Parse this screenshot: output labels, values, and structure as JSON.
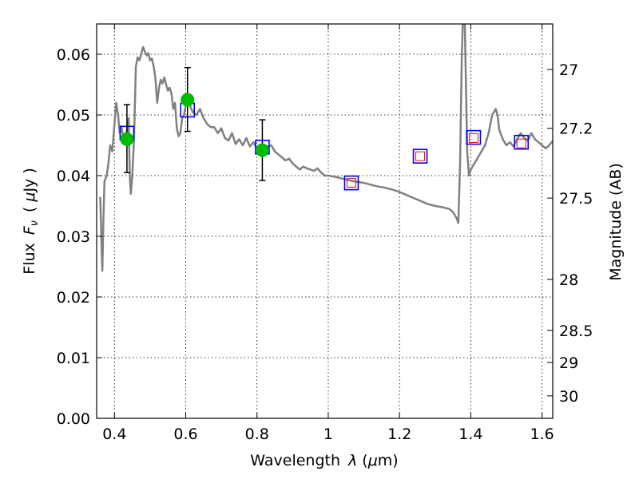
{
  "chart_data": {
    "type": "scatter",
    "xlabel_text": "Wavelength",
    "xlabel_symbol": "λ",
    "xlabel_unit_open": "(",
    "xlabel_unit_mu": "μ",
    "xlabel_unit_close": "m)",
    "ylabel_text": "Flux",
    "ylabel_symbol_base": "F",
    "ylabel_symbol_sub": "ν",
    "ylabel_unit_open": "(",
    "ylabel_unit_mu": "μ",
    "ylabel_unit_close": "Jy )",
    "y2label": "Magnitude (AB)",
    "xlim": [
      0.35,
      1.63
    ],
    "ylim": [
      0.0,
      0.065
    ],
    "grid": true,
    "x_ticks": [
      {
        "value": 0.4,
        "label": "0.4"
      },
      {
        "value": 0.6,
        "label": "0.6"
      },
      {
        "value": 0.8,
        "label": "0.8"
      },
      {
        "value": 1.0,
        "label": "1"
      },
      {
        "value": 1.2,
        "label": "1.2"
      },
      {
        "value": 1.4,
        "label": "1.4"
      },
      {
        "value": 1.6,
        "label": "1.6"
      }
    ],
    "y_ticks": [
      {
        "value": 0.0,
        "label": "0.00"
      },
      {
        "value": 0.01,
        "label": "0.01"
      },
      {
        "value": 0.02,
        "label": "0.02"
      },
      {
        "value": 0.03,
        "label": "0.03"
      },
      {
        "value": 0.04,
        "label": "0.04"
      },
      {
        "value": 0.05,
        "label": "0.05"
      },
      {
        "value": 0.06,
        "label": "0.06"
      }
    ],
    "y2_ticks": [
      {
        "flux": 0.0575,
        "label": "27"
      },
      {
        "flux": 0.0478,
        "label": "27.2"
      },
      {
        "flux": 0.0363,
        "label": "27.5"
      },
      {
        "flux": 0.0229,
        "label": "28"
      },
      {
        "flux": 0.0145,
        "label": "28.5"
      },
      {
        "flux": 0.0092,
        "label": "29"
      },
      {
        "flux": 0.0037,
        "label": "30"
      }
    ],
    "colors": {
      "sed_line": "#808080",
      "model_squares": "#0000ff",
      "upper_squares": "#ff0000",
      "observed_points": "#00bb00",
      "errorbars": "#000000"
    },
    "series": [
      {
        "kind": "line",
        "points": [
          [
            0.36,
            0.0365
          ],
          [
            0.363,
            0.03
          ],
          [
            0.366,
            0.0243
          ],
          [
            0.369,
            0.033
          ],
          [
            0.372,
            0.039
          ],
          [
            0.378,
            0.04
          ],
          [
            0.383,
            0.042
          ],
          [
            0.388,
            0.045
          ],
          [
            0.394,
            0.044
          ],
          [
            0.4,
            0.0485
          ],
          [
            0.405,
            0.052
          ],
          [
            0.41,
            0.05
          ],
          [
            0.415,
            0.047
          ],
          [
            0.42,
            0.048
          ],
          [
            0.425,
            0.046
          ],
          [
            0.43,
            0.0465
          ],
          [
            0.435,
            0.0475
          ],
          [
            0.44,
            0.0495
          ],
          [
            0.443,
            0.04
          ],
          [
            0.446,
            0.037
          ],
          [
            0.45,
            0.04
          ],
          [
            0.455,
            0.046
          ],
          [
            0.46,
            0.058
          ],
          [
            0.465,
            0.0595
          ],
          [
            0.47,
            0.059
          ],
          [
            0.475,
            0.06
          ],
          [
            0.48,
            0.0612
          ],
          [
            0.485,
            0.0605
          ],
          [
            0.49,
            0.0598
          ],
          [
            0.495,
            0.0602
          ],
          [
            0.5,
            0.059
          ],
          [
            0.505,
            0.0593
          ],
          [
            0.51,
            0.058
          ],
          [
            0.515,
            0.056
          ],
          [
            0.52,
            0.052
          ],
          [
            0.525,
            0.0545
          ],
          [
            0.53,
            0.0558
          ],
          [
            0.535,
            0.0552
          ],
          [
            0.54,
            0.0562
          ],
          [
            0.545,
            0.055
          ],
          [
            0.55,
            0.054
          ],
          [
            0.555,
            0.0545
          ],
          [
            0.56,
            0.0535
          ],
          [
            0.565,
            0.051
          ],
          [
            0.57,
            0.052
          ],
          [
            0.575,
            0.0478
          ],
          [
            0.58,
            0.0465
          ],
          [
            0.585,
            0.047
          ],
          [
            0.59,
            0.0495
          ],
          [
            0.595,
            0.05
          ],
          [
            0.6,
            0.0515
          ],
          [
            0.605,
            0.0525
          ],
          [
            0.61,
            0.052
          ],
          [
            0.615,
            0.051
          ],
          [
            0.62,
            0.0505
          ],
          [
            0.63,
            0.05
          ],
          [
            0.64,
            0.051
          ],
          [
            0.65,
            0.0495
          ],
          [
            0.66,
            0.0485
          ],
          [
            0.67,
            0.048
          ],
          [
            0.68,
            0.048
          ],
          [
            0.69,
            0.047
          ],
          [
            0.7,
            0.0478
          ],
          [
            0.71,
            0.0462
          ],
          [
            0.72,
            0.0458
          ],
          [
            0.73,
            0.047
          ],
          [
            0.74,
            0.0452
          ],
          [
            0.75,
            0.046
          ],
          [
            0.76,
            0.045
          ],
          [
            0.77,
            0.0462
          ],
          [
            0.78,
            0.0448
          ],
          [
            0.79,
            0.0455
          ],
          [
            0.8,
            0.0445
          ],
          [
            0.81,
            0.045
          ],
          [
            0.82,
            0.044
          ],
          [
            0.83,
            0.0448
          ],
          [
            0.84,
            0.045
          ],
          [
            0.85,
            0.044
          ],
          [
            0.86,
            0.0435
          ],
          [
            0.87,
            0.043
          ],
          [
            0.88,
            0.0425
          ],
          [
            0.89,
            0.0428
          ],
          [
            0.9,
            0.042
          ],
          [
            0.91,
            0.0415
          ],
          [
            0.92,
            0.041
          ],
          [
            0.93,
            0.0415
          ],
          [
            0.94,
            0.0412
          ],
          [
            0.95,
            0.041
          ],
          [
            0.96,
            0.0408
          ],
          [
            0.97,
            0.0412
          ],
          [
            0.98,
            0.0405
          ],
          [
            0.99,
            0.04
          ],
          [
            1.0,
            0.04
          ],
          [
            1.02,
            0.0398
          ],
          [
            1.04,
            0.0395
          ],
          [
            1.06,
            0.0392
          ],
          [
            1.08,
            0.039
          ],
          [
            1.1,
            0.0388
          ],
          [
            1.12,
            0.0385
          ],
          [
            1.14,
            0.0382
          ],
          [
            1.16,
            0.038
          ],
          [
            1.18,
            0.0377
          ],
          [
            1.2,
            0.0373
          ],
          [
            1.22,
            0.0368
          ],
          [
            1.24,
            0.0363
          ],
          [
            1.26,
            0.0358
          ],
          [
            1.28,
            0.0353
          ],
          [
            1.3,
            0.035
          ],
          [
            1.32,
            0.0348
          ],
          [
            1.34,
            0.0345
          ],
          [
            1.35,
            0.034
          ],
          [
            1.36,
            0.033
          ],
          [
            1.365,
            0.0322
          ],
          [
            1.37,
            0.042
          ],
          [
            1.375,
            0.06
          ],
          [
            1.378,
            0.066
          ],
          [
            1.383,
            0.066
          ],
          [
            1.386,
            0.056
          ],
          [
            1.39,
            0.044
          ],
          [
            1.395,
            0.04
          ],
          [
            1.4,
            0.041
          ],
          [
            1.41,
            0.042
          ],
          [
            1.42,
            0.043
          ],
          [
            1.43,
            0.044
          ],
          [
            1.44,
            0.045
          ],
          [
            1.45,
            0.047
          ],
          [
            1.46,
            0.05
          ],
          [
            1.47,
            0.051
          ],
          [
            1.475,
            0.05
          ],
          [
            1.48,
            0.0475
          ],
          [
            1.49,
            0.046
          ],
          [
            1.5,
            0.045
          ],
          [
            1.51,
            0.0455
          ],
          [
            1.52,
            0.0448
          ],
          [
            1.53,
            0.046
          ],
          [
            1.54,
            0.047
          ],
          [
            1.55,
            0.0462
          ],
          [
            1.56,
            0.0458
          ],
          [
            1.57,
            0.047
          ],
          [
            1.58,
            0.046
          ],
          [
            1.59,
            0.0455
          ],
          [
            1.6,
            0.045
          ],
          [
            1.61,
            0.0445
          ],
          [
            1.62,
            0.045
          ],
          [
            1.63,
            0.0457
          ]
        ]
      },
      {
        "kind": "open-square",
        "points": [
          [
            0.435,
            0.047
          ],
          [
            0.605,
            0.0508
          ],
          [
            0.815,
            0.0447
          ],
          [
            1.065,
            0.0388
          ],
          [
            1.258,
            0.0432
          ],
          [
            1.408,
            0.0463
          ],
          [
            1.542,
            0.0455
          ]
        ]
      },
      {
        "kind": "open-square-small",
        "points": [
          [
            1.065,
            0.0388
          ],
          [
            1.258,
            0.0432
          ],
          [
            1.408,
            0.0462
          ],
          [
            1.542,
            0.0453
          ]
        ]
      },
      {
        "kind": "points-with-errorbars",
        "points": [
          {
            "x": 0.435,
            "y": 0.046,
            "ylo": 0.0405,
            "yhi": 0.0517
          },
          {
            "x": 0.605,
            "y": 0.0525,
            "ylo": 0.0473,
            "yhi": 0.0578
          },
          {
            "x": 0.815,
            "y": 0.0442,
            "ylo": 0.0392,
            "yhi": 0.0492
          }
        ]
      }
    ]
  }
}
